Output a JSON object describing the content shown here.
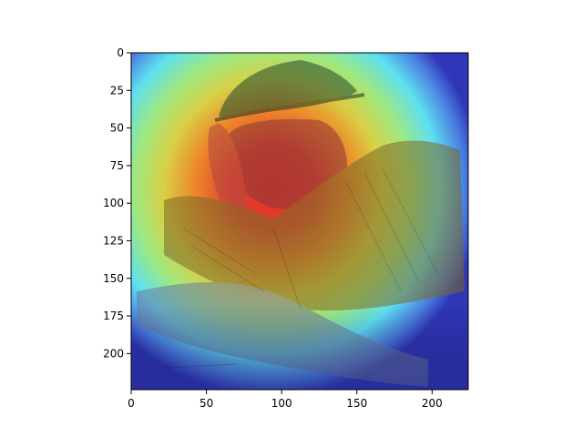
{
  "chart_data": {
    "type": "heatmap",
    "description_visible": "Grad-CAM style heatmap overlay on an engraving of a man in a hat resting his head on his hand",
    "xlim": [
      0,
      224
    ],
    "ylim": [
      224,
      0
    ],
    "x_ticks": [
      0,
      50,
      100,
      150,
      200
    ],
    "y_ticks": [
      0,
      25,
      50,
      75,
      100,
      125,
      150,
      175,
      200
    ],
    "x_tick_labels": [
      "0",
      "50",
      "100",
      "150",
      "200"
    ],
    "y_tick_labels": [
      "0",
      "25",
      "50",
      "75",
      "100",
      "125",
      "150",
      "175",
      "200"
    ],
    "colormap": "jet",
    "hotspot_center": [
      95,
      85
    ],
    "title": "",
    "xlabel": "",
    "ylabel": ""
  },
  "colors": {
    "cold": "#2a2ab8",
    "cyan": "#5fe0ff",
    "green": "#9cf08a",
    "yellow": "#e8d84a",
    "orange": "#f0902a",
    "hot": "#e03a2a",
    "frame": "#000000"
  }
}
